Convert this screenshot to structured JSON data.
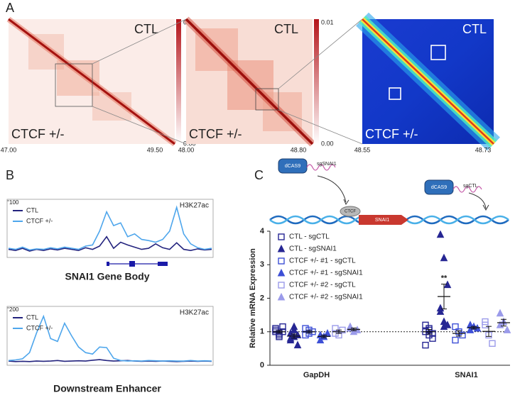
{
  "panel_labels": [
    "A",
    "B",
    "C"
  ],
  "panel_a": {
    "maps": [
      {
        "top_label": "CTL",
        "bottom_label": "CTCF +/-",
        "x_start": "47.00",
        "x_end": "49.50",
        "scale_max": "0.01",
        "scale_min": "0.00"
      },
      {
        "top_label": "CTL",
        "bottom_label": "CTCF +/-",
        "x_start": "48.00",
        "x_end": "48.80",
        "scale_max": "0.01",
        "scale_min": "0.00"
      },
      {
        "top_label": "CTL",
        "bottom_label": "CTCF +/-",
        "x_start": "48.55",
        "x_end": "48.73"
      }
    ]
  },
  "panel_c_diagram": {
    "labels": [
      "dCAS9",
      "sgSNAI1",
      "CTCF",
      "SNAI1",
      "dCAS9",
      "sgCTL"
    ]
  },
  "chart_data": [
    {
      "type": "line",
      "title": "SNAI1 Gene Body",
      "mark_label": "H3K27ac",
      "categories": [
        null,
        null,
        null,
        null,
        null,
        null,
        null,
        null,
        null,
        null,
        null,
        null,
        null,
        null,
        null,
        null,
        null,
        null,
        null,
        null,
        null,
        null,
        null,
        null,
        null,
        null,
        null,
        null,
        null,
        null
      ],
      "series": [
        {
          "name": "CTL",
          "color": "#23237e",
          "values": [
            12,
            10,
            14,
            9,
            12,
            10,
            13,
            11,
            14,
            12,
            10,
            15,
            12,
            18,
            35,
            14,
            25,
            20,
            16,
            12,
            14,
            22,
            15,
            12,
            24,
            12,
            10,
            13,
            11,
            12
          ]
        },
        {
          "name": "CTCF +/-",
          "color": "#4ea6ec",
          "values": [
            14,
            12,
            16,
            11,
            13,
            12,
            15,
            13,
            16,
            14,
            12,
            18,
            20,
            45,
            80,
            55,
            60,
            35,
            40,
            30,
            28,
            25,
            30,
            45,
            88,
            40,
            22,
            15,
            12,
            14
          ]
        }
      ],
      "ylim": [
        0,
        100
      ],
      "yticks": [
        100
      ],
      "legend": "upper-left"
    },
    {
      "type": "line",
      "title": "Downstream Enhancer",
      "mark_label": "H3K27ac",
      "categories": [
        null,
        null,
        null,
        null,
        null,
        null,
        null,
        null,
        null,
        null,
        null,
        null,
        null,
        null,
        null,
        null,
        null,
        null,
        null,
        null,
        null,
        null,
        null,
        null,
        null,
        null,
        null,
        null,
        null,
        null
      ],
      "series": [
        {
          "name": "CTL",
          "color": "#23237e",
          "values": [
            10,
            8,
            9,
            8,
            10,
            9,
            10,
            12,
            9,
            10,
            11,
            10,
            13,
            15,
            12,
            10,
            11,
            12,
            10,
            9,
            10,
            9,
            10,
            9,
            8,
            9,
            10,
            9,
            10,
            9
          ]
        },
        {
          "name": "CTCF +/-",
          "color": "#4ea6ec",
          "values": [
            12,
            14,
            18,
            40,
            110,
            170,
            90,
            80,
            145,
            100,
            60,
            40,
            35,
            60,
            58,
            20,
            12,
            10,
            11,
            10,
            12,
            11,
            10,
            11,
            10,
            10,
            12,
            10,
            11,
            10
          ]
        }
      ],
      "ylim": [
        0,
        200
      ],
      "yticks": [
        200
      ],
      "legend": "upper-left"
    },
    {
      "type": "scatter",
      "y_label": "Relative mRNA Expression",
      "categories": [
        "GapDH",
        "SNAI1"
      ],
      "series": [
        {
          "name": "CTL - sgCTL",
          "color": "#262693",
          "marker": "square-open",
          "values": [
            [
              1.1,
              0.95,
              1.0,
              1.05,
              0.9,
              1.15,
              1.0,
              0.85
            ],
            [
              1.2,
              1.05,
              0.8,
              0.6,
              1.1,
              0.95,
              1.0,
              0.9
            ]
          ],
          "mean": [
            1.0,
            1.0
          ],
          "sem": [
            0.04,
            0.07
          ]
        },
        {
          "name": "CTL - sgSNAI1",
          "color": "#262693",
          "marker": "triangle-filled",
          "values": [
            [
              0.95,
              0.85,
              0.6,
              0.75,
              1.15,
              0.9,
              0.8,
              1.05
            ],
            [
              3.9,
              3.2,
              2.4,
              1.7,
              1.15,
              1.2,
              1.6,
              1.3
            ]
          ],
          "mean": [
            0.87,
            2.05
          ],
          "sem": [
            0.06,
            0.37
          ]
        },
        {
          "name": "CTCF +/- #1 - sgCTL",
          "color": "#3d4fd6",
          "marker": "square-open",
          "values": [
            [
              1.1,
              0.95,
              1.0,
              0.9,
              1.05
            ],
            [
              1.15,
              1.0,
              0.9,
              0.75
            ]
          ],
          "mean": [
            1.0,
            0.95
          ],
          "sem": [
            0.04,
            0.08
          ]
        },
        {
          "name": "CTCF +/- #1 - sgSNAI1",
          "color": "#3d4fd6",
          "marker": "triangle-filled",
          "values": [
            [
              0.9,
              0.85,
              0.95,
              0.75
            ],
            [
              1.2,
              1.15,
              1.1,
              1.05
            ]
          ],
          "mean": [
            0.86,
            1.12
          ],
          "sem": [
            0.04,
            0.04
          ]
        },
        {
          "name": "CTCF +/- #2 - sgCTL",
          "color": "#9b9bea",
          "marker": "square-open",
          "values": [
            [
              1.1,
              0.9,
              1.05,
              0.95
            ],
            [
              1.3,
              0.9,
              0.65,
              1.2
            ]
          ],
          "mean": [
            1.0,
            1.01
          ],
          "sem": [
            0.05,
            0.15
          ]
        },
        {
          "name": "CTCF +/- #2 - sgSNAI1",
          "color": "#9b9bea",
          "marker": "triangle-filled",
          "values": [
            [
              1.15,
              1.0,
              1.05,
              1.1
            ],
            [
              1.55,
              1.3,
              1.05,
              1.2
            ]
          ],
          "mean": [
            1.07,
            1.27
          ],
          "sem": [
            0.04,
            0.1
          ]
        }
      ],
      "ylim": [
        0,
        4
      ],
      "yticks": [
        0,
        1,
        2,
        3,
        4
      ],
      "reference_line": 1,
      "annotations": [
        {
          "text": "**",
          "series": 1,
          "category": 1
        }
      ],
      "legend": "upper-left"
    }
  ]
}
